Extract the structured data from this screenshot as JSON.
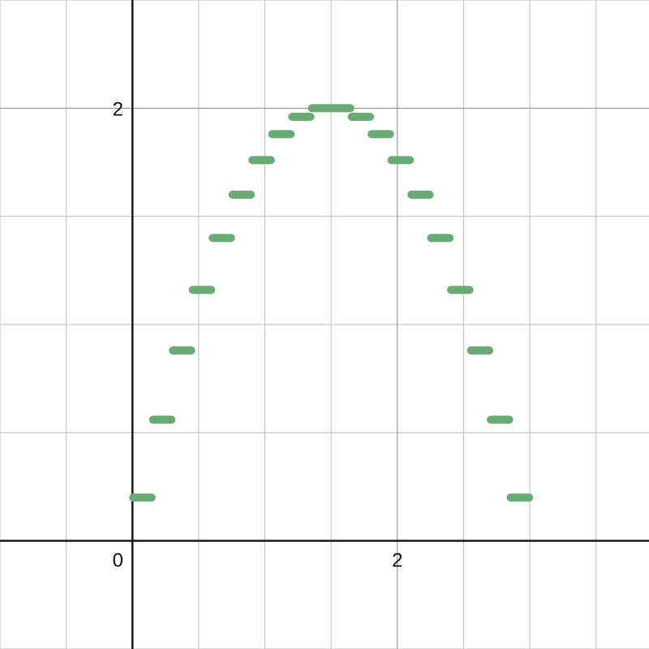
{
  "chart_data": {
    "type": "line",
    "title": "",
    "xlabel": "",
    "ylabel": "",
    "xlim": [
      -1,
      3.9
    ],
    "ylim": [
      -0.5,
      2.5
    ],
    "x_major_step": 2,
    "x_minor_step": 0.5,
    "y_major_step": 2,
    "y_minor_step": 0.5,
    "x_tick_labels": [
      {
        "value": 0,
        "text": "0"
      },
      {
        "value": 2,
        "text": "2"
      }
    ],
    "y_tick_labels": [
      {
        "value": 2,
        "text": "2"
      }
    ],
    "grid": true,
    "series": [
      {
        "color": "#6aaa74",
        "style": "horizontal-steps",
        "segments": [
          {
            "x0": 0.0,
            "x1": 0.15,
            "y": 0.2
          },
          {
            "x0": 0.15,
            "x1": 0.3,
            "y": 0.56
          },
          {
            "x0": 0.3,
            "x1": 0.45,
            "y": 0.88
          },
          {
            "x0": 0.45,
            "x1": 0.6,
            "y": 1.16
          },
          {
            "x0": 0.6,
            "x1": 0.75,
            "y": 1.4
          },
          {
            "x0": 0.75,
            "x1": 0.9,
            "y": 1.6
          },
          {
            "x0": 0.9,
            "x1": 1.05,
            "y": 1.76
          },
          {
            "x0": 1.05,
            "x1": 1.2,
            "y": 1.88
          },
          {
            "x0": 1.2,
            "x1": 1.35,
            "y": 1.96
          },
          {
            "x0": 1.35,
            "x1": 1.65,
            "y": 2.0
          },
          {
            "x0": 1.65,
            "x1": 1.8,
            "y": 1.96
          },
          {
            "x0": 1.8,
            "x1": 1.95,
            "y": 1.88
          },
          {
            "x0": 1.95,
            "x1": 2.1,
            "y": 1.76
          },
          {
            "x0": 2.1,
            "x1": 2.25,
            "y": 1.6
          },
          {
            "x0": 2.25,
            "x1": 2.4,
            "y": 1.4
          },
          {
            "x0": 2.4,
            "x1": 2.55,
            "y": 1.16
          },
          {
            "x0": 2.55,
            "x1": 2.7,
            "y": 0.88
          },
          {
            "x0": 2.7,
            "x1": 2.85,
            "y": 0.56
          },
          {
            "x0": 2.85,
            "x1": 3.0,
            "y": 0.2
          }
        ]
      }
    ]
  }
}
